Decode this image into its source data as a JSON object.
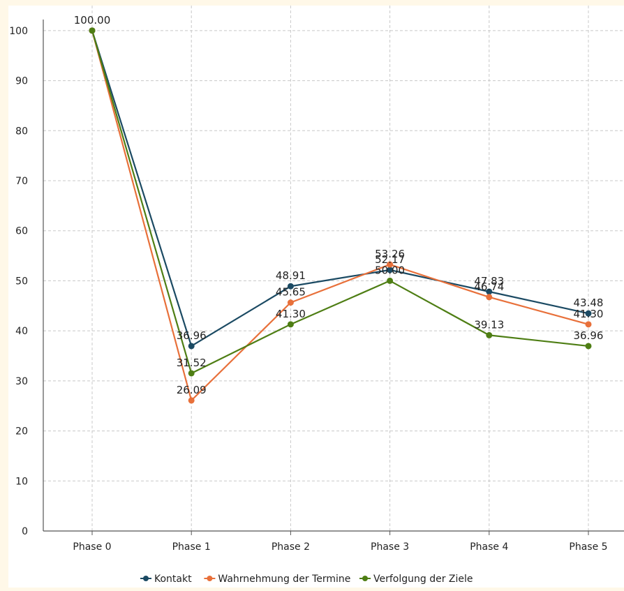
{
  "chart_data": {
    "type": "line",
    "title": "",
    "xlabel": "",
    "ylabel": "",
    "categories": [
      "Phase 0",
      "Phase 1",
      "Phase 2",
      "Phase 3",
      "Phase 4",
      "Phase 5"
    ],
    "ylim": [
      0,
      105
    ],
    "yticks": [
      0,
      10,
      20,
      30,
      40,
      50,
      60,
      70,
      80,
      90,
      100
    ],
    "grid": true,
    "legend_position": "bottom",
    "series": [
      {
        "name": "Kontakt",
        "color": "#1B4A63",
        "values": [
          100.0,
          36.96,
          48.91,
          52.17,
          47.83,
          43.48
        ],
        "labels": [
          "",
          "36.96",
          "48.91",
          "52.17",
          "47.83",
          "43.48"
        ]
      },
      {
        "name": "Wahrnehmung der Termine",
        "color": "#E8703A",
        "values": [
          100.0,
          26.09,
          45.65,
          53.26,
          46.74,
          41.3
        ],
        "labels": [
          "",
          "26.09",
          "45.65",
          "53.26",
          "46.74",
          "41.30"
        ]
      },
      {
        "name": "Verfolgung der Ziele",
        "color": "#4E7E14",
        "values": [
          100.0,
          31.52,
          41.3,
          50.0,
          39.13,
          36.96
        ],
        "labels": [
          "100.00",
          "31.52",
          "41.30",
          "50.00",
          "39.13",
          "36.96"
        ]
      }
    ]
  }
}
